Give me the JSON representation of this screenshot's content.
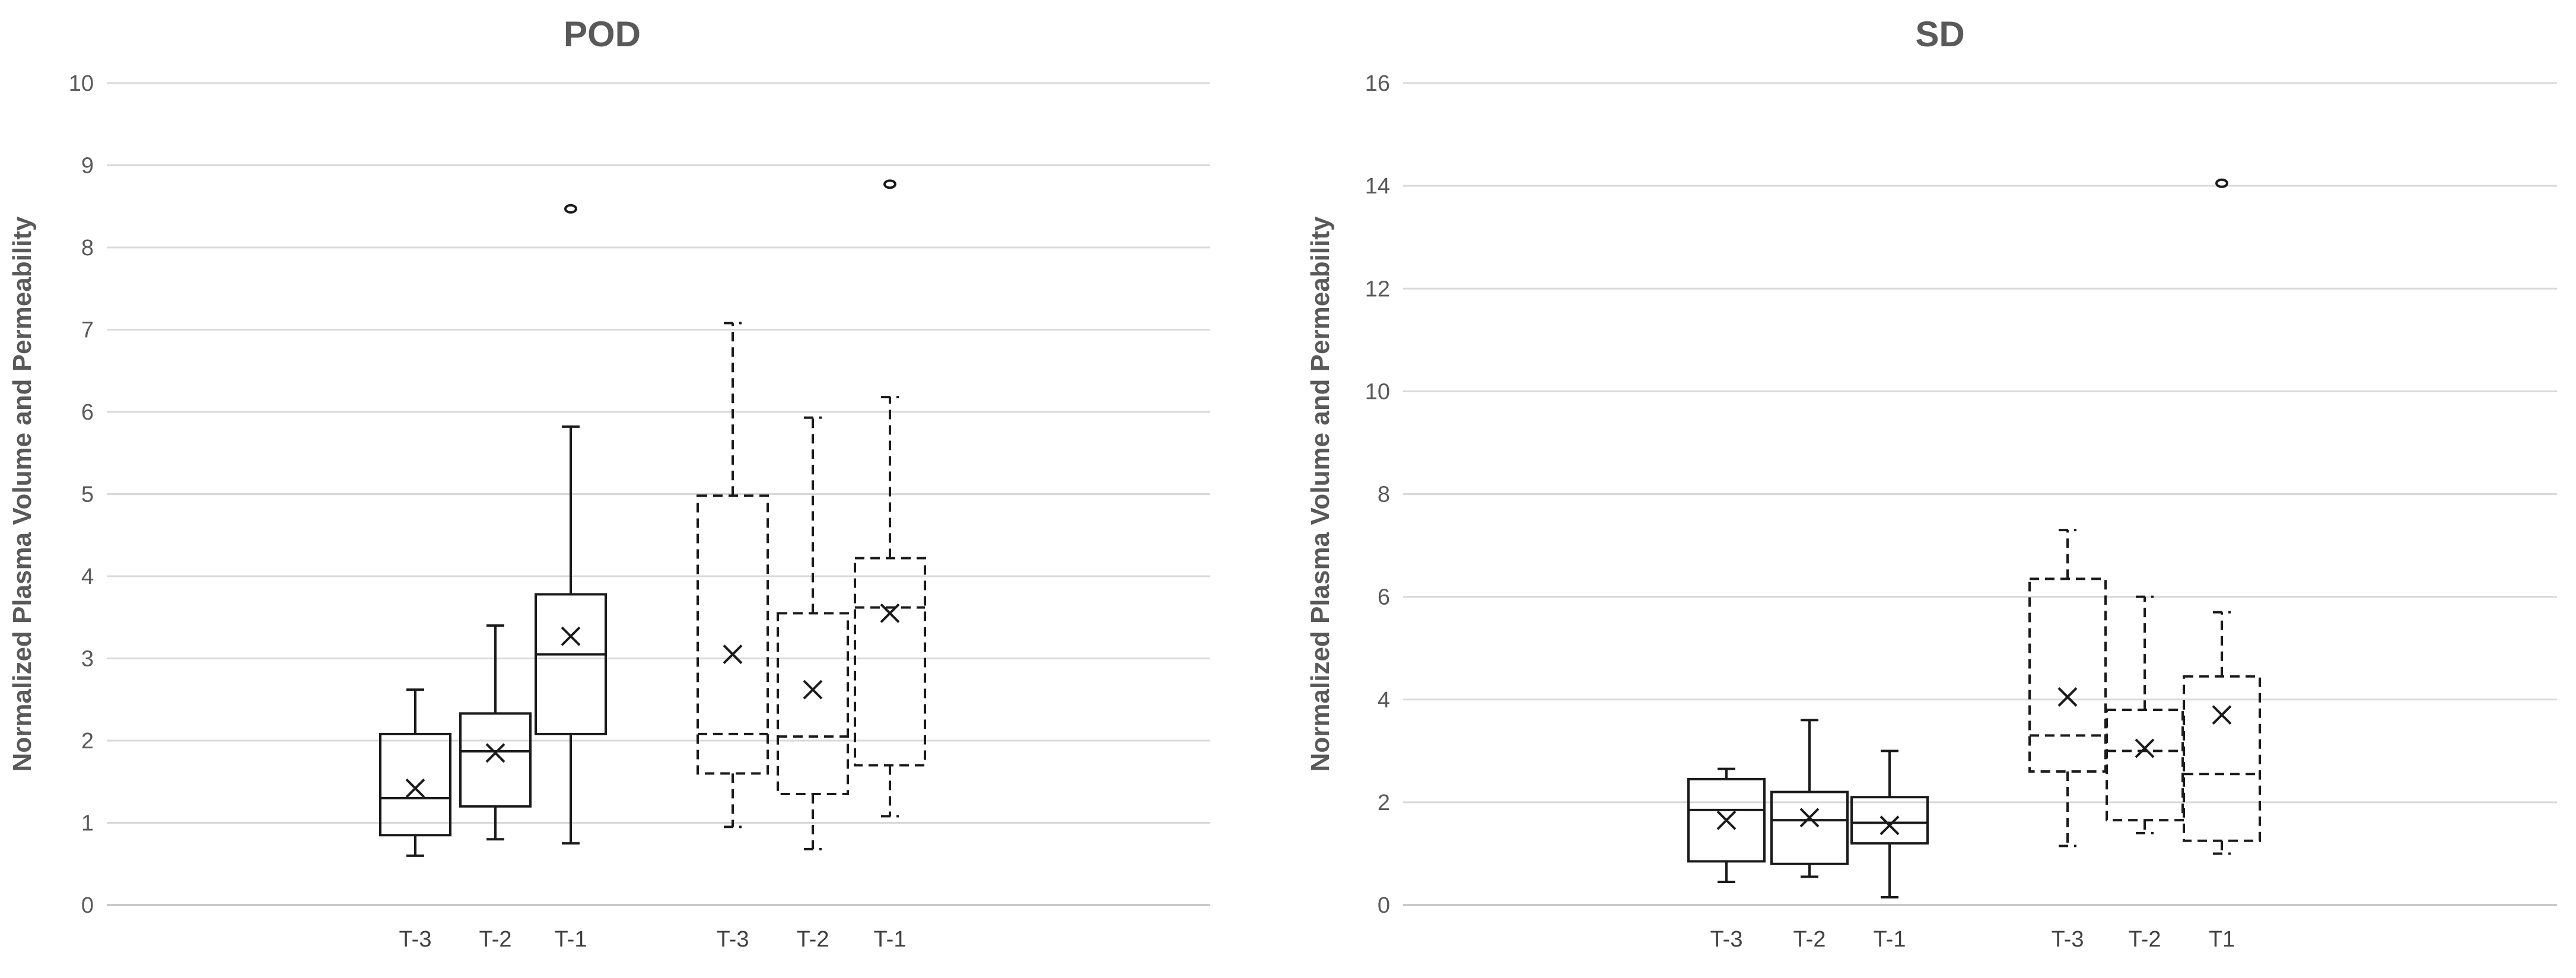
{
  "chart_data": [
    {
      "type": "box",
      "title": "POD",
      "ylabel": "Normalized Plasma Volume and Permeability",
      "ylim": [
        0,
        10
      ],
      "yticks": [
        "0",
        "1",
        "2",
        "3",
        "4",
        "5",
        "6",
        "7",
        "8",
        "9",
        "10"
      ],
      "grid": true,
      "boxes": [
        {
          "label": "T-3",
          "style": "solid",
          "min": 0.6,
          "q1": 0.85,
          "median": 1.3,
          "q3": 2.08,
          "max": 2.62,
          "mean": 1.42,
          "outliers": []
        },
        {
          "label": "T-2",
          "style": "solid",
          "min": 0.8,
          "q1": 1.2,
          "median": 1.87,
          "q3": 2.33,
          "max": 3.4,
          "mean": 1.85,
          "outliers": []
        },
        {
          "label": "T-1",
          "style": "solid",
          "min": 0.75,
          "q1": 2.08,
          "median": 3.05,
          "q3": 3.78,
          "max": 5.82,
          "mean": 3.27,
          "outliers": [
            8.47
          ]
        },
        {
          "label": "T-3",
          "style": "dashed",
          "min": 0.95,
          "q1": 1.6,
          "median": 2.08,
          "q3": 4.98,
          "max": 7.08,
          "mean": 3.05,
          "outliers": []
        },
        {
          "label": "T-2",
          "style": "dashed",
          "min": 0.68,
          "q1": 1.35,
          "median": 2.05,
          "q3": 3.55,
          "max": 5.93,
          "mean": 2.62,
          "outliers": []
        },
        {
          "label": "T-1",
          "style": "dashed",
          "min": 1.08,
          "q1": 1.7,
          "median": 3.62,
          "q3": 4.22,
          "max": 6.18,
          "mean": 3.55,
          "outliers": [
            8.77
          ]
        }
      ]
    },
    {
      "type": "box",
      "title": "SD",
      "ylabel": "Normalized Plasma Volume and Permeability",
      "ylim": [
        0,
        16
      ],
      "yticks": [
        "0",
        "2",
        "4",
        "6",
        "8",
        "10",
        "12",
        "14",
        "16"
      ],
      "grid": true,
      "boxes": [
        {
          "label": "T-3",
          "style": "solid",
          "min": 0.45,
          "q1": 0.85,
          "median": 1.85,
          "q3": 2.45,
          "max": 2.65,
          "mean": 1.65,
          "outliers": []
        },
        {
          "label": "T-2",
          "style": "solid",
          "min": 0.55,
          "q1": 0.8,
          "median": 1.65,
          "q3": 2.2,
          "max": 3.6,
          "mean": 1.7,
          "outliers": []
        },
        {
          "label": "T-1",
          "style": "solid",
          "min": 0.15,
          "q1": 1.2,
          "median": 1.6,
          "q3": 2.1,
          "max": 3.0,
          "mean": 1.55,
          "outliers": []
        },
        {
          "label": "T-3",
          "style": "dashed",
          "min": 1.15,
          "q1": 2.6,
          "median": 3.3,
          "q3": 6.35,
          "max": 7.3,
          "mean": 4.05,
          "outliers": []
        },
        {
          "label": "T-2",
          "style": "dashed",
          "min": 1.4,
          "q1": 1.65,
          "median": 3.0,
          "q3": 3.8,
          "max": 6.0,
          "mean": 3.05,
          "outliers": []
        },
        {
          "label": "T1",
          "style": "dashed",
          "min": 1.0,
          "q1": 1.25,
          "median": 2.55,
          "q3": 4.45,
          "max": 5.7,
          "mean": 3.7,
          "outliers": [
            14.05
          ]
        }
      ]
    }
  ]
}
